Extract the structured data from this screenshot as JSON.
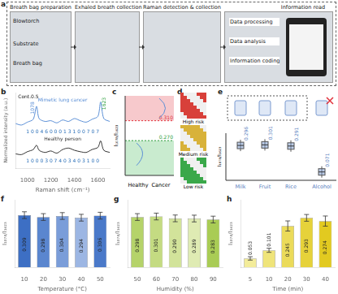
{
  "panels": {
    "a": {
      "letter": "a",
      "steps": [
        "Breath bag preparation",
        "Exhaled breath collection",
        "Raman detection & collection",
        "Information read"
      ],
      "bag_labels": [
        "Blowtorch",
        "Substrate",
        "Breath bag"
      ],
      "processing": [
        "Data processing",
        "Data analysis",
        "Information coding"
      ]
    },
    "c": {
      "letter": "c",
      "ylabel": "I₁₀₇₈/I₁₆₂₃",
      "categories": [
        "Healthy",
        "Cancer"
      ],
      "ylim": [
        0.2,
        0.36
      ],
      "thresholds": [
        {
          "value": 0.31,
          "label": "0.310",
          "color": "#e0303a"
        },
        {
          "value": 0.27,
          "label": "0.270",
          "color": "#2a9d3a"
        }
      ]
    },
    "d": {
      "letter": "d",
      "levels": [
        "High risk",
        "Medium risk",
        "Low risk"
      ],
      "colors": [
        "#d8403a",
        "#d8b23a",
        "#3aa84a"
      ]
    },
    "e": {
      "letter": "e",
      "ylabel": "I₁₀₇₈/I₁₆₂₃",
      "categories": [
        "Milk",
        "Fruit",
        "Rice",
        "Alcohol"
      ],
      "ylim": [
        0,
        0.4
      ],
      "values": [
        0.296,
        0.301,
        0.291,
        0.071
      ],
      "value_labels": [
        "0.296",
        "0.301",
        "0.291",
        "0.071"
      ],
      "color": "#7a9ad0"
    }
  },
  "chart_data": [
    {
      "letter": "b",
      "type": "line",
      "annotation": "Cont.0.5",
      "xlabel": "Raman shift (cm⁻¹)",
      "ylabel": "Normalized intensity (a.u.)",
      "xlim": [
        900,
        1700
      ],
      "xticks": [
        1000,
        1200,
        1400,
        1600
      ],
      "ylim": [
        0,
        10.5
      ],
      "yticks": [],
      "tick_labels": "x",
      "grid": false,
      "x": [
        900,
        950,
        1000,
        1050,
        1078,
        1100,
        1150,
        1200,
        1250,
        1300,
        1350,
        1400,
        1450,
        1500,
        1550,
        1600,
        1623,
        1650,
        1700
      ],
      "series": [
        {
          "name": "Mimetic lung cancer",
          "color": "#5b8fd6",
          "code": "1 0 0 4 6 0 0 0 1 3 1 0 0 7 0 7",
          "values": [
            6.2,
            6.0,
            6.4,
            6.8,
            8.6,
            6.9,
            6.5,
            6.6,
            6.3,
            6.7,
            6.5,
            6.9,
            6.6,
            6.4,
            6.8,
            7.2,
            9.2,
            6.9,
            6.5
          ]
        },
        {
          "name": "Healthy person",
          "color": "#333333",
          "code": "1 0 0 0 3 0 7 4 0 3 4 0 3 1 0 0",
          "values": [
            2.0,
            1.9,
            2.3,
            2.6,
            3.2,
            2.5,
            2.2,
            2.4,
            2.1,
            2.6,
            2.8,
            2.5,
            2.3,
            2.2,
            2.6,
            2.9,
            3.8,
            2.5,
            2.2
          ]
        }
      ],
      "peaks": [
        {
          "x": 1078,
          "label": "1078"
        },
        {
          "x": 1623,
          "label": "1623"
        }
      ]
    },
    {
      "letter": "f",
      "type": "bar",
      "xlabel": "Temperature (°C)",
      "ylabel": "I₁₀₇₈/I₁₆₂₃",
      "categories": [
        "10",
        "20",
        "30",
        "40",
        "50"
      ],
      "values": [
        0.309,
        0.298,
        0.304,
        0.294,
        0.306
      ],
      "value_labels": [
        "0.309",
        "0.298",
        "0.304",
        "0.294",
        "0.306"
      ],
      "errors": [
        0.02,
        0.02,
        0.02,
        0.02,
        0.02
      ],
      "colors": [
        "#3d6fc4",
        "#5a86cf",
        "#7a9dd9",
        "#9cb6e3",
        "#4a79c9"
      ],
      "ylim": [
        0,
        0.4
      ],
      "yticks": [
        0,
        0.1,
        0.2,
        0.3,
        0.4
      ],
      "tick_labels": "x",
      "grid": false,
      "data_labels": true
    },
    {
      "letter": "g",
      "type": "bar",
      "xlabel": "Humidity (%)",
      "ylabel": "I₁₀₇₈/I₁₆₂₃",
      "categories": [
        "50",
        "60",
        "70",
        "80",
        "90"
      ],
      "values": [
        0.298,
        0.301,
        0.29,
        0.289,
        0.283
      ],
      "value_labels": [
        "0.298",
        "0.301",
        "0.290",
        "0.289",
        "0.283"
      ],
      "errors": [
        0.02,
        0.02,
        0.02,
        0.02,
        0.02
      ],
      "colors": [
        "#b5d36a",
        "#c4db82",
        "#d2e39a",
        "#dfebb3",
        "#a9cc55"
      ],
      "ylim": [
        0,
        0.4
      ],
      "yticks": [
        0,
        0.1,
        0.2,
        0.3,
        0.4
      ],
      "tick_labels": "x",
      "grid": false,
      "data_labels": true
    },
    {
      "letter": "h",
      "type": "bar",
      "xlabel": "Time (min)",
      "ylabel": "I₁₀₇₈/I₁₆₂₃",
      "categories": [
        "5",
        "10",
        "20",
        "30",
        "40"
      ],
      "values": [
        0.053,
        0.101,
        0.245,
        0.293,
        0.274
      ],
      "value_labels": [
        "0.053",
        "0.101",
        "0.245",
        "0.293",
        "0.274"
      ],
      "errors": [
        0.01,
        0.012,
        0.03,
        0.02,
        0.03
      ],
      "colors": [
        "#f3ec9a",
        "#efe47a",
        "#ebdb5a",
        "#e6d23a",
        "#e2ca20"
      ],
      "ylim": [
        0,
        0.4
      ],
      "yticks": [
        0,
        0.1,
        0.2,
        0.3,
        0.4
      ],
      "tick_labels": "x",
      "grid": false,
      "data_labels": true
    }
  ]
}
